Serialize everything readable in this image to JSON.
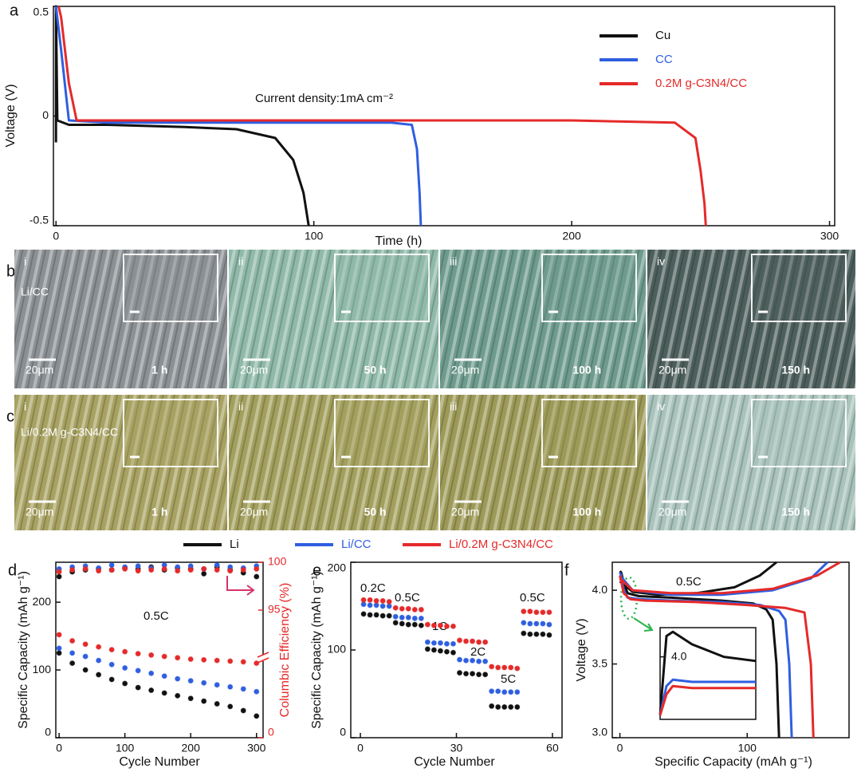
{
  "chart_data": [
    {
      "type": "line",
      "panel": "a",
      "xlabel": "Time (h)",
      "ylabel": "Voltage (V)",
      "annotations": [
        "Current density:1mA cm⁻²"
      ],
      "xlim": [
        -1,
        302
      ],
      "ylim": [
        -0.5,
        0.5
      ],
      "xticks": [
        0,
        100,
        200,
        300
      ],
      "yticks": [
        -0.5,
        0,
        0.5
      ],
      "legend": "upper right",
      "series": [
        {
          "name": "Cu",
          "color": "#111111",
          "x": [
            0,
            0,
            0.5,
            5,
            20,
            50,
            70,
            85,
            92,
            96,
            98
          ],
          "values": [
            -0.12,
            0.5,
            -0.02,
            -0.04,
            -0.04,
            -0.05,
            -0.06,
            -0.1,
            -0.2,
            -0.35,
            -0.5
          ]
        },
        {
          "name": "CC",
          "color": "#2f5fe0",
          "x": [
            0,
            2,
            5,
            20,
            60,
            100,
            130,
            138,
            140,
            141,
            141.5
          ],
          "values": [
            0.5,
            0.3,
            -0.02,
            -0.03,
            -0.03,
            -0.03,
            -0.03,
            -0.04,
            -0.15,
            -0.35,
            -0.5
          ]
        },
        {
          "name": "0.2M g-C3N4/CC",
          "color": "#e52a2a",
          "x": [
            1,
            2,
            5,
            8,
            20,
            100,
            200,
            240,
            248,
            250,
            251.5,
            252
          ],
          "values": [
            0.5,
            0.45,
            0.15,
            -0.02,
            -0.02,
            -0.02,
            -0.02,
            -0.03,
            -0.1,
            -0.25,
            -0.4,
            -0.5
          ]
        }
      ]
    },
    {
      "type": "scatter",
      "panel": "d",
      "xlabel": "Cycle Number",
      "ylabel": "Specific Capacity (mAh g⁻¹)",
      "y2label": "Columbic Efficiency (%)",
      "annotations": [
        "0.5C"
      ],
      "xlim": [
        -5,
        310
      ],
      "ylim": [
        0,
        259
      ],
      "y2lim": [
        0,
        100
      ],
      "y2_break": [
        5,
        90
      ],
      "xticks": [
        0,
        100,
        200,
        300
      ],
      "yticks": [
        0,
        100,
        200
      ],
      "y2ticks": [
        0,
        95,
        100
      ],
      "legend": "top",
      "x": [
        0,
        20,
        40,
        60,
        80,
        100,
        120,
        140,
        160,
        180,
        200,
        220,
        240,
        260,
        280,
        300
      ],
      "series": [
        {
          "name": "Li",
          "color": "#111111",
          "values": [
            125,
            110,
            100,
            93,
            86,
            80,
            74,
            70,
            66,
            62,
            58,
            54,
            50,
            46,
            40,
            32
          ]
        },
        {
          "name": "Li/CC",
          "color": "#2f5fe0",
          "values": [
            132,
            125,
            120,
            114,
            108,
            103,
            99,
            95,
            91,
            87,
            84,
            81,
            78,
            75,
            72,
            68
          ]
        },
        {
          "name": "Li/0.2M g-C3N4/CC",
          "color": "#e52a2a",
          "values": [
            152,
            143,
            138,
            134,
            130,
            127,
            124,
            122,
            120,
            118,
            116,
            115,
            114,
            113,
            112,
            110
          ]
        },
        {
          "axis": "y2",
          "color": "#111111",
          "values": [
            98.5,
            99,
            99.2,
            99.3,
            99.2,
            99.4,
            99.3,
            99.5,
            99.2,
            99.4,
            99.3,
            98.8,
            99.5,
            99.2,
            98.9,
            98.5
          ]
        },
        {
          "axis": "y2",
          "color": "#2f5fe0",
          "values": [
            99.3,
            99.5,
            99.6,
            99.4,
            99.7,
            99.5,
            99.6,
            99.4,
            99.7,
            99.5,
            99.6,
            99.3,
            99.7,
            99.5,
            99.4,
            99.6
          ]
        },
        {
          "axis": "y2",
          "color": "#e52a2a",
          "values": [
            99,
            99.2,
            99.3,
            99.1,
            99.2,
            99.3,
            99.1,
            99.2,
            99.3,
            99.1,
            99.2,
            99.3,
            99.2,
            99.1,
            99.2,
            99.3
          ]
        }
      ]
    },
    {
      "type": "scatter",
      "panel": "e",
      "xlabel": "Cycle Number",
      "ylabel": "Specific Capacity (mAh g⁻¹)",
      "annotations": [
        "0.2C",
        "0.5C",
        "1C",
        "2C",
        "5C",
        "0.5C"
      ],
      "xlim": [
        -3,
        63
      ],
      "ylim": [
        0,
        200
      ],
      "xticks": [
        0,
        30,
        60
      ],
      "yticks": [
        0,
        100,
        200
      ],
      "x": [
        1,
        3,
        5,
        7,
        9,
        11,
        13,
        15,
        17,
        19,
        21,
        23,
        25,
        27,
        29,
        31,
        33,
        35,
        37,
        39,
        41,
        43,
        45,
        47,
        49,
        51,
        53,
        55,
        57,
        59
      ],
      "series": [
        {
          "color": "#111111",
          "values": [
            141,
            140,
            140,
            139,
            139,
            131,
            130,
            129,
            129,
            128,
            101,
            100,
            99,
            98,
            97,
            74,
            73,
            73,
            72,
            72,
            36,
            35,
            35,
            35,
            35,
            119,
            118,
            118,
            118,
            117
          ]
        },
        {
          "color": "#2f5fe0",
          "values": [
            152,
            151,
            151,
            150,
            150,
            138,
            137,
            137,
            136,
            136,
            109,
            108,
            108,
            107,
            107,
            89,
            88,
            88,
            87,
            87,
            53,
            53,
            52,
            52,
            52,
            131,
            130,
            130,
            130,
            129
          ]
        },
        {
          "color": "#e52a2a",
          "values": [
            157,
            157,
            156,
            156,
            155,
            148,
            147,
            147,
            146,
            146,
            129,
            128,
            128,
            127,
            127,
            111,
            110,
            110,
            109,
            109,
            81,
            80,
            80,
            80,
            79,
            144,
            144,
            143,
            143,
            143
          ]
        }
      ]
    },
    {
      "type": "line",
      "panel": "f",
      "xlabel": "Specific Capacity (mAh g⁻¹)",
      "ylabel": "Voltage (V)",
      "annotations": [
        "0.5C"
      ],
      "xlim": [
        -6,
        180
      ],
      "ylim": [
        3.0,
        4.19
      ],
      "xticks": [
        0,
        100
      ],
      "yticks": [
        {
          "value": 3,
          "label": "3.0"
        },
        {
          "value": 3.5,
          "label": "3.5"
        },
        {
          "value": 4,
          "label": "4.0"
        }
      ],
      "series": [
        {
          "color": "#111111",
          "x": [
            0,
            1,
            3,
            6,
            15,
            40,
            80,
            105,
            115,
            120,
            123,
            125,
            null,
            0,
            10,
            30,
            60,
            90,
            110,
            123
          ],
          "values": [
            4.13,
            4.12,
            4.05,
            3.98,
            3.96,
            3.95,
            3.93,
            3.91,
            3.87,
            3.8,
            3.5,
            3.0,
            null,
            4.06,
            3.99,
            3.97,
            3.98,
            4.02,
            4.1,
            4.19
          ]
        },
        {
          "color": "#2f5fe0",
          "x": [
            0,
            1,
            3,
            6,
            15,
            40,
            80,
            110,
            125,
            130,
            133,
            135,
            null,
            0,
            10,
            40,
            80,
            120,
            150,
            163
          ],
          "values": [
            4.12,
            4.1,
            4.0,
            3.95,
            3.94,
            3.93,
            3.92,
            3.9,
            3.86,
            3.8,
            3.5,
            3.0,
            null,
            4.1,
            4.0,
            3.97,
            3.97,
            4.0,
            4.08,
            4.19
          ]
        },
        {
          "color": "#e52a2a",
          "x": [
            0,
            1,
            3,
            8,
            20,
            60,
            100,
            130,
            145,
            150,
            152,
            null,
            0,
            10,
            40,
            80,
            120,
            155,
            173
          ],
          "values": [
            4.1,
            4.06,
            3.98,
            3.94,
            3.93,
            3.92,
            3.9,
            3.88,
            3.85,
            3.5,
            3.0,
            null,
            4.08,
            4.0,
            3.98,
            3.98,
            4.01,
            4.1,
            4.19
          ]
        }
      ]
    },
    {
      "type": "line",
      "xlim": [
        0,
        30
      ],
      "ylim": [
        3.85,
        4.07
      ],
      "yticks": [
        {
          "value": 4,
          "label": "4.0"
        }
      ],
      "series": [
        {
          "color": "#111111",
          "x": [
            0,
            2,
            4,
            10,
            20,
            30
          ],
          "values": [
            3.86,
            4.05,
            4.06,
            4.03,
            4.0,
            3.99
          ]
        },
        {
          "color": "#2f5fe0",
          "x": [
            0,
            2,
            4,
            10,
            20,
            30
          ],
          "values": [
            3.86,
            3.93,
            3.945,
            3.94,
            3.94,
            3.94
          ]
        },
        {
          "color": "#e52a2a",
          "x": [
            0,
            2,
            4,
            10,
            20,
            30
          ],
          "values": [
            3.86,
            3.91,
            3.93,
            3.925,
            3.925,
            3.925
          ]
        }
      ]
    }
  ],
  "micrographs": [
    {
      "panel": "b",
      "sample": "Li/CC",
      "images": [
        {
          "index": "i",
          "scale": "20μm",
          "time": "1 h"
        },
        {
          "index": "ii",
          "scale": "20μm",
          "time": "50 h"
        },
        {
          "index": "iii",
          "scale": "20μm",
          "time": "100 h"
        },
        {
          "index": "iv",
          "scale": "20μm",
          "time": "150 h"
        }
      ]
    },
    {
      "panel": "c",
      "sample": "Li/0.2M g-C3N4/CC",
      "images": [
        {
          "index": "i",
          "scale": "20μm",
          "time": "1 h"
        },
        {
          "index": "ii",
          "scale": "20μm",
          "time": "50 h"
        },
        {
          "index": "iii",
          "scale": "20μm",
          "time": "100 h"
        },
        {
          "index": "iv",
          "scale": "20μm",
          "time": "150 h"
        }
      ]
    }
  ]
}
